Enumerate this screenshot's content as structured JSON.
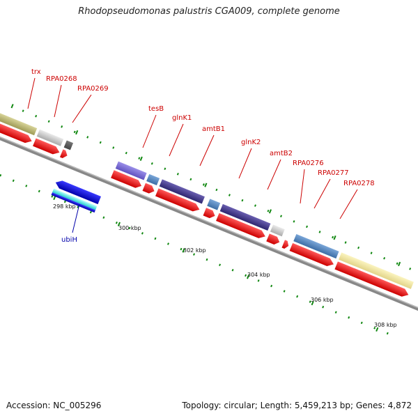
{
  "title": "Rhodopseudomonas palustris CGA009, complete genome",
  "footer": {
    "accession": "Accession: NC_005296",
    "summary": "Topology: circular; Length: 5,459,213 bp; Genes: 4,872"
  },
  "colors": {
    "label_forward": "#cc0000",
    "label_reverse": "#0000aa",
    "backbone": "#888888",
    "tick": "#118811"
  },
  "scale_labels": [
    "298 kbp",
    "300 kbp",
    "302 kbp",
    "304 kbp",
    "306 kbp",
    "308 kbp"
  ],
  "gene_labels": [
    {
      "text": "trx",
      "strand": "forward"
    },
    {
      "text": "RPA0268",
      "strand": "forward"
    },
    {
      "text": "RPA0269",
      "strand": "forward"
    },
    {
      "text": "tesB",
      "strand": "forward"
    },
    {
      "text": "glnK1",
      "strand": "forward"
    },
    {
      "text": "amtB1",
      "strand": "forward"
    },
    {
      "text": "glnK2",
      "strand": "forward"
    },
    {
      "text": "amtB2",
      "strand": "forward"
    },
    {
      "text": "RPA0276",
      "strand": "forward"
    },
    {
      "text": "RPA0277",
      "strand": "forward"
    },
    {
      "text": "RPA0278",
      "strand": "forward"
    },
    {
      "text": "ubiH",
      "strand": "reverse"
    }
  ]
}
